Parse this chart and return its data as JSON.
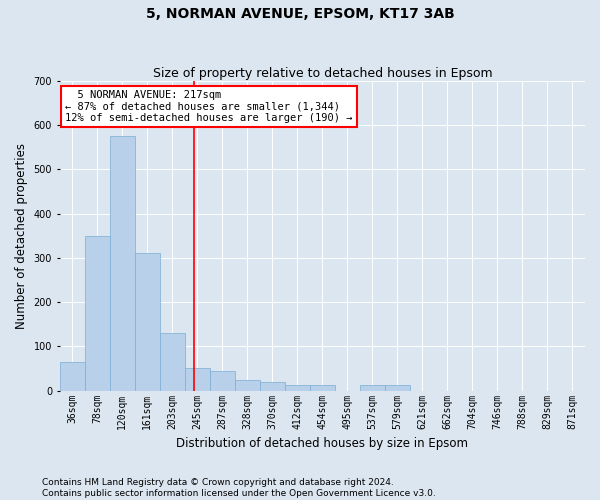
{
  "title1": "5, NORMAN AVENUE, EPSOM, KT17 3AB",
  "title2": "Size of property relative to detached houses in Epsom",
  "xlabel": "Distribution of detached houses by size in Epsom",
  "ylabel": "Number of detached properties",
  "footnote": "Contains HM Land Registry data © Crown copyright and database right 2024.\nContains public sector information licensed under the Open Government Licence v3.0.",
  "bin_labels": [
    "36sqm",
    "78sqm",
    "120sqm",
    "161sqm",
    "203sqm",
    "245sqm",
    "287sqm",
    "328sqm",
    "370sqm",
    "412sqm",
    "454sqm",
    "495sqm",
    "537sqm",
    "579sqm",
    "621sqm",
    "662sqm",
    "704sqm",
    "746sqm",
    "788sqm",
    "829sqm",
    "871sqm"
  ],
  "bar_values": [
    65,
    350,
    575,
    310,
    130,
    50,
    45,
    25,
    20,
    13,
    13,
    0,
    13,
    13,
    0,
    0,
    0,
    0,
    0,
    0,
    0
  ],
  "bar_color": "#b8d0ea",
  "bar_edge_color": "#7aaed4",
  "vline_x": 4.85,
  "vline_color": "red",
  "annotation_text": "  5 NORMAN AVENUE: 217sqm\n← 87% of detached houses are smaller (1,344)\n12% of semi-detached houses are larger (190) →",
  "annotation_box_color": "white",
  "annotation_box_edgecolor": "red",
  "ylim": [
    0,
    700
  ],
  "yticks": [
    0,
    100,
    200,
    300,
    400,
    500,
    600,
    700
  ],
  "bg_color": "#dce6f0",
  "plot_bg_color": "#dce6f0",
  "grid_color": "white",
  "title1_fontsize": 10,
  "title2_fontsize": 9,
  "xlabel_fontsize": 8.5,
  "ylabel_fontsize": 8.5,
  "tick_fontsize": 7,
  "footnote_fontsize": 6.5,
  "annotation_fontsize": 7.5
}
